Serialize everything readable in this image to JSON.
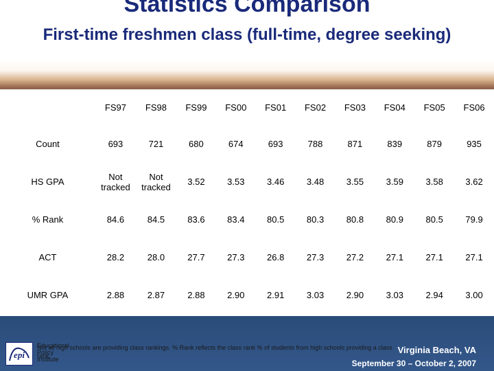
{
  "header": {
    "title": "Statistics Comparison",
    "subtitle": "First-time freshmen class (full-time, degree seeking)"
  },
  "table": {
    "columns": [
      "FS97",
      "FS98",
      "FS99",
      "FS00",
      "FS01",
      "FS02",
      "FS03",
      "FS04",
      "FS05",
      "FS06"
    ],
    "rows": [
      {
        "label": "Count",
        "values": [
          "693",
          "721",
          "680",
          "674",
          "693",
          "788",
          "871",
          "839",
          "879",
          "935"
        ]
      },
      {
        "label": "HS GPA",
        "values": [
          "Not tracked",
          "Not tracked",
          "3.52",
          "3.53",
          "3.46",
          "3.48",
          "3.55",
          "3.59",
          "3.58",
          "3.62"
        ]
      },
      {
        "label": "% Rank",
        "values": [
          "84.6",
          "84.5",
          "83.6",
          "83.4",
          "80.5",
          "80.3",
          "80.8",
          "80.9",
          "80.5",
          "79.9"
        ]
      },
      {
        "label": "ACT",
        "values": [
          "28.2",
          "28.0",
          "27.7",
          "27.3",
          "26.8",
          "27.3",
          "27.2",
          "27.1",
          "27.1",
          "27.1"
        ]
      },
      {
        "label": "UMR GPA",
        "values": [
          "2.88",
          "2.87",
          "2.88",
          "2.90",
          "2.91",
          "3.03",
          "2.90",
          "3.03",
          "2.94",
          "3.00"
        ]
      }
    ]
  },
  "footer": {
    "logo_mark": "epi",
    "logo_lines": [
      "Educational",
      "Policy",
      "Institute"
    ],
    "footnote": "Not all high schools are providing class rankings.  % Rank reflects the class rank % of students from high schools providing a class rank.",
    "city": "Virginia Beach, VA",
    "dates": "September 30 – October 2, 2007"
  },
  "colors": {
    "title": "#1a2a7a",
    "panel": "#ffffff",
    "venue_text": "#ffffff"
  }
}
